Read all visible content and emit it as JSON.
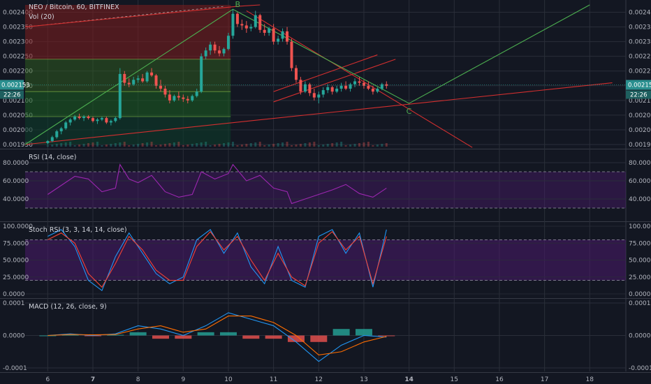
{
  "chart_data": [
    {
      "type": "candlestick",
      "title": "NEO / Bitcoin, 60, BITFINEX",
      "volume_label": "Vol (20)",
      "ylim": [
        0.00195,
        0.002425
      ],
      "y_ticks": [
        "0.002400",
        "0.002350",
        "0.002300",
        "0.002250",
        "0.002200",
        "0.002150",
        "0.002100",
        "0.002050",
        "0.002000",
        "0.001950"
      ],
      "last_price": "0.002153",
      "countdown": "22:26",
      "wave_labels": [
        "B",
        "C"
      ],
      "ohlc": [
        [
          1.0,
          0.001955,
          0.001965,
          0.00195,
          0.001962
        ],
        [
          1.1,
          0.001962,
          0.00198,
          0.001958,
          0.001975
        ],
        [
          1.2,
          0.001975,
          0.002,
          0.00197,
          0.001995
        ],
        [
          1.3,
          0.001995,
          0.00201,
          0.001985,
          0.002005
        ],
        [
          1.4,
          0.002005,
          0.00203,
          0.002,
          0.002025
        ],
        [
          1.5,
          0.002025,
          0.00204,
          0.002015,
          0.002035
        ],
        [
          1.6,
          0.002035,
          0.00205,
          0.00203,
          0.002045
        ],
        [
          1.7,
          0.002045,
          0.002055,
          0.002035,
          0.00204
        ],
        [
          1.8,
          0.00204,
          0.00205,
          0.00203,
          0.002045
        ],
        [
          1.9,
          0.002045,
          0.00205,
          0.002035,
          0.00204
        ],
        [
          2.0,
          0.00204,
          0.002045,
          0.002025,
          0.00203
        ],
        [
          2.1,
          0.00203,
          0.00204,
          0.00202,
          0.002035
        ],
        [
          2.2,
          0.002035,
          0.002045,
          0.00203,
          0.00204
        ],
        [
          2.3,
          0.00204,
          0.002045,
          0.00202,
          0.002025
        ],
        [
          2.4,
          0.002025,
          0.002035,
          0.002015,
          0.00203
        ],
        [
          2.5,
          0.00203,
          0.002045,
          0.002025,
          0.00204
        ],
        [
          2.6,
          0.00204,
          0.00221,
          0.002035,
          0.00219
        ],
        [
          2.7,
          0.00219,
          0.0022,
          0.00215,
          0.00216
        ],
        [
          2.8,
          0.00216,
          0.002175,
          0.002145,
          0.002155
        ],
        [
          2.9,
          0.002155,
          0.00218,
          0.00215,
          0.00217
        ],
        [
          3.0,
          0.00217,
          0.002185,
          0.00216,
          0.002175
        ],
        [
          3.1,
          0.002175,
          0.00219,
          0.00216,
          0.002165
        ],
        [
          3.2,
          0.002165,
          0.0022,
          0.00216,
          0.002195
        ],
        [
          3.3,
          0.002195,
          0.00221,
          0.00218,
          0.002185
        ],
        [
          3.4,
          0.002185,
          0.00219,
          0.00214,
          0.00215
        ],
        [
          3.5,
          0.00215,
          0.00217,
          0.00213,
          0.00214
        ],
        [
          3.6,
          0.00214,
          0.00215,
          0.00211,
          0.00212
        ],
        [
          3.7,
          0.00212,
          0.002135,
          0.00209,
          0.0021
        ],
        [
          3.8,
          0.0021,
          0.00212,
          0.002095,
          0.002115
        ],
        [
          3.9,
          0.002115,
          0.00213,
          0.0021,
          0.00211
        ],
        [
          4.0,
          0.00211,
          0.00212,
          0.002095,
          0.002105
        ],
        [
          4.1,
          0.002105,
          0.002115,
          0.00209,
          0.0021
        ],
        [
          4.2,
          0.0021,
          0.00212,
          0.002095,
          0.002115
        ],
        [
          4.3,
          0.002115,
          0.00214,
          0.00211,
          0.00213
        ],
        [
          4.4,
          0.00213,
          0.00226,
          0.002125,
          0.00225
        ],
        [
          4.5,
          0.00225,
          0.00228,
          0.00224,
          0.00227
        ],
        [
          4.6,
          0.00227,
          0.0023,
          0.002255,
          0.00229
        ],
        [
          4.7,
          0.00229,
          0.0023,
          0.00226,
          0.00227
        ],
        [
          4.8,
          0.00227,
          0.002285,
          0.00225,
          0.00226
        ],
        [
          4.9,
          0.00226,
          0.00228,
          0.00225,
          0.002275
        ],
        [
          5.0,
          0.002275,
          0.00233,
          0.00227,
          0.00232
        ],
        [
          5.1,
          0.00232,
          0.00241,
          0.00231,
          0.002395
        ],
        [
          5.2,
          0.002395,
          0.0024,
          0.00235,
          0.00236
        ],
        [
          5.3,
          0.00236,
          0.002375,
          0.00234,
          0.002355
        ],
        [
          5.4,
          0.002355,
          0.00237,
          0.00233,
          0.002345
        ],
        [
          5.5,
          0.002345,
          0.00236,
          0.002335,
          0.00235
        ],
        [
          5.6,
          0.00235,
          0.002405,
          0.002345,
          0.00239
        ],
        [
          5.7,
          0.00239,
          0.002395,
          0.00233,
          0.00234
        ],
        [
          5.8,
          0.00234,
          0.00236,
          0.00232,
          0.00233
        ],
        [
          5.9,
          0.00233,
          0.00235,
          0.00232,
          0.002345
        ],
        [
          6.0,
          0.002345,
          0.00236,
          0.00229,
          0.0023
        ],
        [
          6.1,
          0.0023,
          0.00232,
          0.00229,
          0.00231
        ],
        [
          6.2,
          0.00231,
          0.002345,
          0.0023,
          0.002335
        ],
        [
          6.3,
          0.002335,
          0.00235,
          0.00229,
          0.0023
        ],
        [
          6.4,
          0.0023,
          0.00231,
          0.0022,
          0.00221
        ],
        [
          6.5,
          0.00221,
          0.00222,
          0.00216,
          0.00217
        ],
        [
          6.6,
          0.00217,
          0.00218,
          0.00212,
          0.00213
        ],
        [
          6.7,
          0.00213,
          0.002165,
          0.002125,
          0.002155
        ],
        [
          6.8,
          0.002155,
          0.00216,
          0.002115,
          0.002125
        ],
        [
          6.9,
          0.002125,
          0.00214,
          0.0021,
          0.00211
        ],
        [
          7.0,
          0.00211,
          0.00213,
          0.00209,
          0.00212
        ],
        [
          7.1,
          0.00212,
          0.002145,
          0.00211,
          0.002135
        ],
        [
          7.2,
          0.002135,
          0.002155,
          0.002125,
          0.002145
        ],
        [
          7.3,
          0.002145,
          0.00215,
          0.00212,
          0.00213
        ],
        [
          7.4,
          0.00213,
          0.00215,
          0.002125,
          0.00214
        ],
        [
          7.5,
          0.00214,
          0.00216,
          0.00213,
          0.00215
        ],
        [
          7.6,
          0.00215,
          0.002165,
          0.002135,
          0.00214
        ],
        [
          7.7,
          0.00214,
          0.00216,
          0.00213,
          0.002155
        ],
        [
          7.8,
          0.002155,
          0.002175,
          0.002145,
          0.002165
        ],
        [
          7.9,
          0.002165,
          0.00218,
          0.00215,
          0.00216
        ],
        [
          8.0,
          0.00216,
          0.00217,
          0.00214,
          0.00215
        ],
        [
          8.1,
          0.00215,
          0.002165,
          0.002135,
          0.00214
        ],
        [
          8.2,
          0.00214,
          0.00215,
          0.00212,
          0.00213
        ],
        [
          8.3,
          0.00213,
          0.002145,
          0.002125,
          0.00214
        ],
        [
          8.4,
          0.00214,
          0.00216,
          0.002135,
          0.002155
        ],
        [
          8.5,
          0.002155,
          0.002165,
          0.00214,
          0.00215
        ]
      ]
    },
    {
      "type": "line",
      "title": "RSI (14, close)",
      "ylim": [
        20,
        90
      ],
      "y_ticks": [
        "80.0000",
        "60.0000",
        "40.0000"
      ],
      "bands": [
        70,
        30
      ],
      "x": [
        1.0,
        1.3,
        1.6,
        1.9,
        2.2,
        2.5,
        2.6,
        2.8,
        3.0,
        3.3,
        3.6,
        3.9,
        4.2,
        4.4,
        4.7,
        5.0,
        5.1,
        5.4,
        5.7,
        6.0,
        6.3,
        6.4,
        6.7,
        7.0,
        7.3,
        7.6,
        7.9,
        8.2,
        8.5
      ],
      "values": [
        45,
        55,
        65,
        62,
        48,
        52,
        78,
        62,
        58,
        66,
        48,
        42,
        45,
        70,
        62,
        68,
        78,
        60,
        66,
        52,
        48,
        35,
        40,
        45,
        50,
        56,
        46,
        42,
        52
      ]
    },
    {
      "type": "line",
      "title": "Stoch RSI (3, 3, 14, 14, close)",
      "ylim": [
        0,
        100
      ],
      "y_ticks": [
        "100.0000",
        "75.0000",
        "50.0000",
        "25.0000",
        "0.0000"
      ],
      "bands": [
        80,
        20
      ],
      "x": [
        1.0,
        1.3,
        1.6,
        1.9,
        2.2,
        2.5,
        2.8,
        3.1,
        3.4,
        3.7,
        4.0,
        4.3,
        4.6,
        4.9,
        5.2,
        5.5,
        5.8,
        6.1,
        6.4,
        6.7,
        7.0,
        7.3,
        7.6,
        7.9,
        8.2,
        8.5
      ],
      "series": [
        {
          "color": "#2196f3",
          "values": [
            85,
            95,
            70,
            20,
            5,
            55,
            90,
            60,
            30,
            15,
            25,
            80,
            95,
            60,
            90,
            40,
            15,
            70,
            20,
            10,
            85,
            95,
            60,
            90,
            10,
            95
          ]
        },
        {
          "color": "#f44336",
          "values": [
            80,
            90,
            75,
            30,
            10,
            45,
            85,
            65,
            35,
            20,
            20,
            70,
            92,
            65,
            85,
            50,
            20,
            60,
            25,
            12,
            75,
            92,
            65,
            85,
            15,
            85
          ]
        }
      ]
    },
    {
      "type": "bar",
      "title": "MACD (12, 26, close, 9)",
      "ylim": [
        -0.0001,
        0.0001
      ],
      "y_ticks": [
        "0.0001",
        "0.0000",
        "-0.0001"
      ],
      "x": [
        1.0,
        1.5,
        2.0,
        2.5,
        3.0,
        3.5,
        4.0,
        4.5,
        5.0,
        5.5,
        6.0,
        6.5,
        7.0,
        7.5,
        8.0,
        8.5
      ],
      "series": [
        {
          "color": "#2196f3",
          "values": [
            0.0,
            5e-06,
            0.0,
            5e-06,
            3e-05,
            2e-05,
            0.0,
            3e-05,
            7e-05,
            5e-05,
            3e-05,
            -2e-05,
            -8e-05,
            -3e-05,
            0.0,
            -5e-06
          ]
        },
        {
          "color": "#ff6d00",
          "values": [
            0.0,
            3e-06,
            2e-06,
            3e-06,
            2e-05,
            3e-05,
            1e-05,
            2e-05,
            6e-05,
            6e-05,
            4e-05,
            0.0,
            -6e-05,
            -5e-05,
            -2e-05,
            -3e-06
          ]
        }
      ],
      "histogram": [
        0.0,
        2e-06,
        -2e-06,
        2e-06,
        1e-05,
        -1e-05,
        -1e-05,
        1e-05,
        1e-05,
        -1e-05,
        -1e-05,
        -2e-05,
        -2e-05,
        2e-05,
        2e-05,
        -2e-06
      ]
    }
  ],
  "x_axis": {
    "range": [
      0.5,
      13.8
    ],
    "ticks": [
      {
        "x": 1.0,
        "label": "6",
        "bold": false
      },
      {
        "x": 2.0,
        "label": "7",
        "bold": true
      },
      {
        "x": 3.0,
        "label": "8",
        "bold": false
      },
      {
        "x": 4.0,
        "label": "9",
        "bold": false
      },
      {
        "x": 5.0,
        "label": "10",
        "bold": false
      },
      {
        "x": 6.0,
        "label": "11",
        "bold": false
      },
      {
        "x": 7.0,
        "label": "12",
        "bold": false
      },
      {
        "x": 8.0,
        "label": "13",
        "bold": false
      },
      {
        "x": 9.0,
        "label": "14",
        "bold": true
      },
      {
        "x": 10.0,
        "label": "15",
        "bold": false
      },
      {
        "x": 11.0,
        "label": "16",
        "bold": false
      },
      {
        "x": 12.0,
        "label": "17",
        "bold": false
      },
      {
        "x": 13.0,
        "label": "18",
        "bold": false
      }
    ]
  },
  "colors": {
    "up": "#26a69a",
    "down": "#ef5350",
    "grid": "#2a2e39",
    "bg": "#131722",
    "rsi": "#9c27b0",
    "trend_red": "#d32f2f",
    "trend_green": "#4caf50",
    "fib_green": "#1b5e20",
    "fib_red": "#7f1d1d",
    "price_tag": "#2a8f8f"
  }
}
